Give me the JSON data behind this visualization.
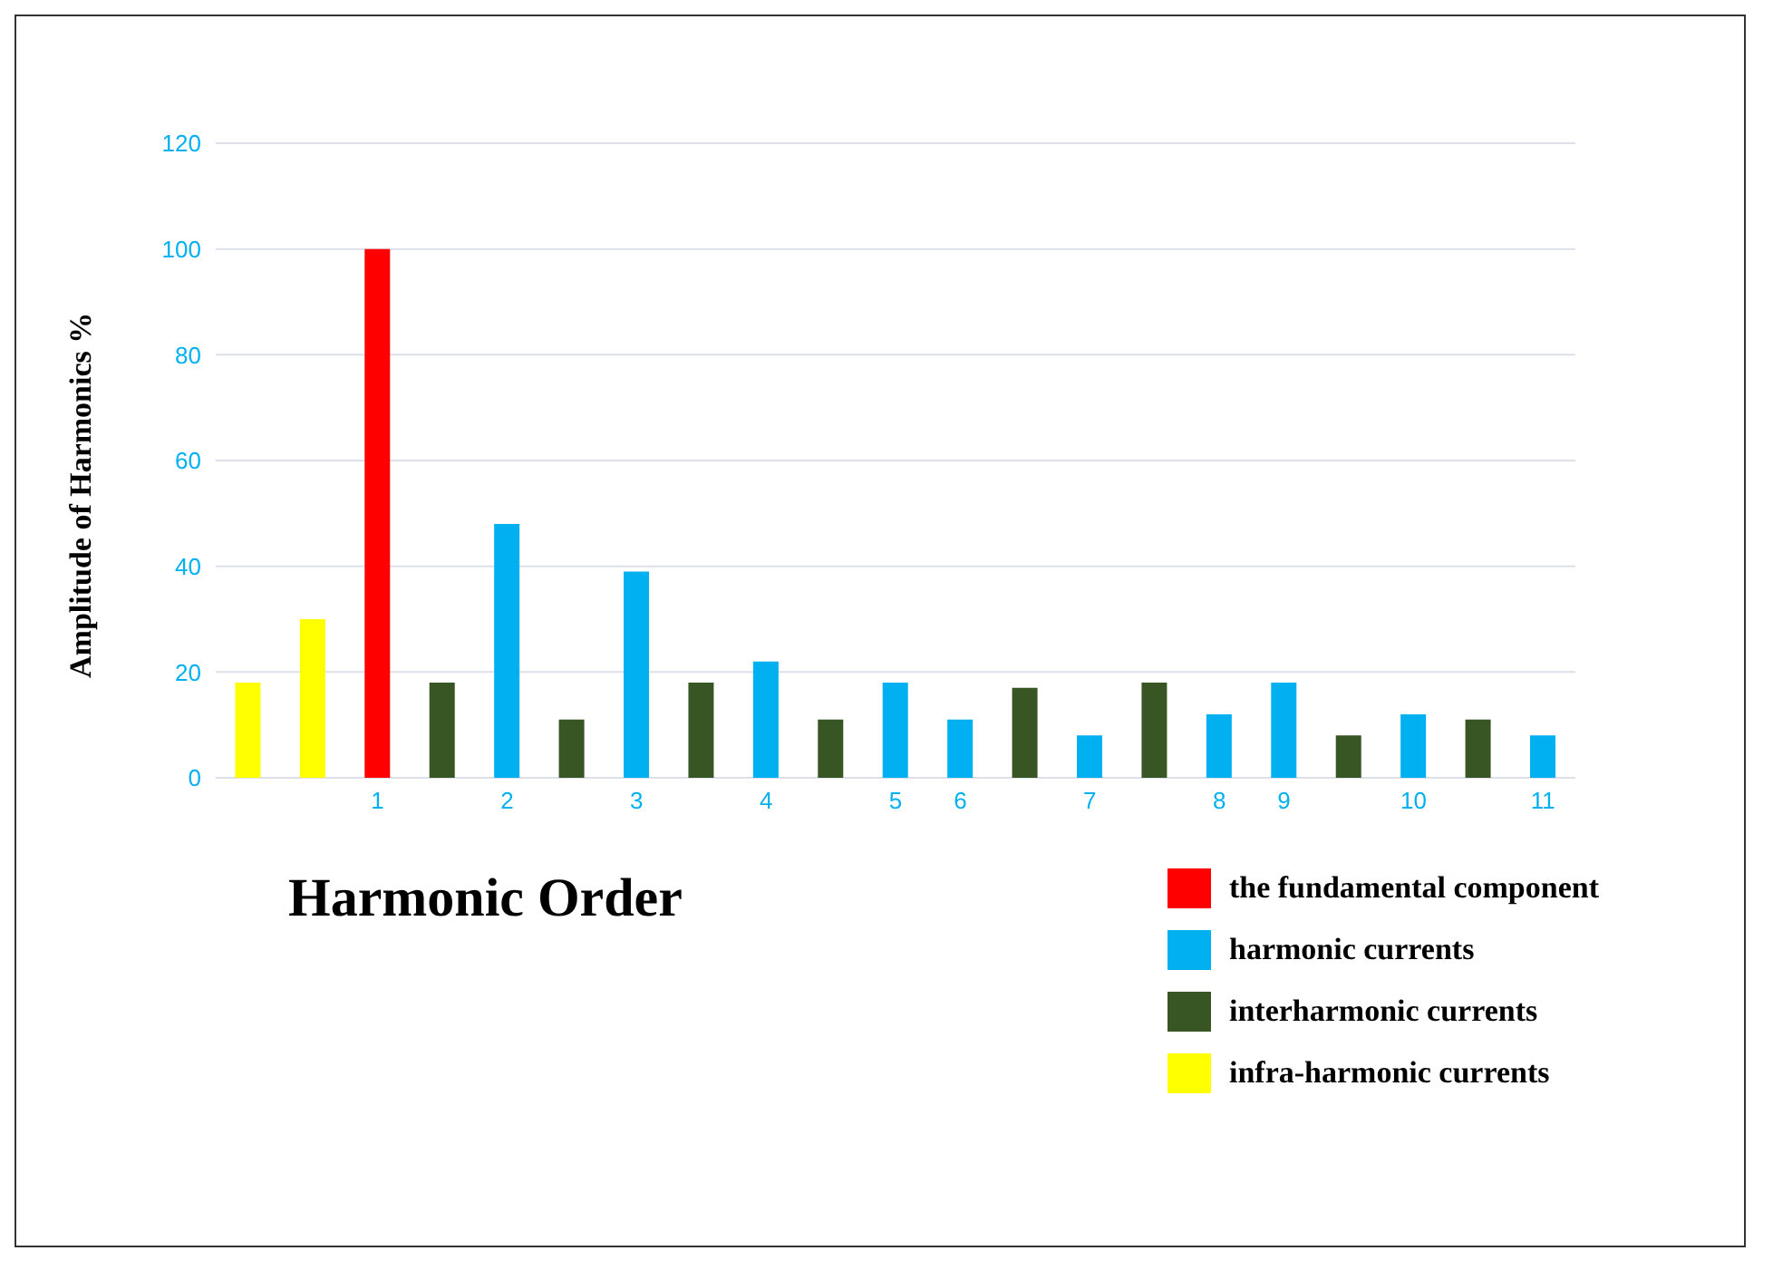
{
  "chart_data": {
    "type": "bar",
    "xlabel": "Harmonic Order",
    "ylabel": "Amplitude of Harmonics %",
    "categories": [
      null,
      null,
      "1",
      null,
      "2",
      null,
      "3",
      null,
      "4",
      null,
      "5",
      "6",
      null,
      "7",
      null,
      "8",
      "9",
      null,
      "10",
      null,
      "11"
    ],
    "stacked": true,
    "series": [
      {
        "name": "the fundamental component",
        "color": "#ff0000",
        "values": [
          null,
          null,
          100,
          null,
          null,
          null,
          null,
          null,
          null,
          null,
          null,
          null,
          null,
          null,
          null,
          null,
          null,
          null,
          null,
          null,
          null
        ]
      },
      {
        "name": "harmonic currents",
        "color": "#00b0f0",
        "values": [
          null,
          null,
          null,
          null,
          48,
          null,
          39,
          null,
          22,
          null,
          18,
          11,
          null,
          8,
          null,
          12,
          18,
          null,
          12,
          null,
          8
        ]
      },
      {
        "name": "interharmonic currents",
        "color": "#375623",
        "values": [
          null,
          null,
          null,
          18,
          null,
          11,
          null,
          18,
          null,
          11,
          null,
          null,
          17,
          null,
          18,
          null,
          null,
          8,
          null,
          11,
          null
        ]
      },
      {
        "name": "infra-harmonic currents",
        "color": "#ffff00",
        "values": [
          18,
          30,
          null,
          null,
          null,
          null,
          null,
          null,
          null,
          null,
          null,
          null,
          null,
          null,
          null,
          null,
          null,
          null,
          null,
          null,
          null
        ]
      }
    ],
    "ylim": [
      0,
      120
    ],
    "yticks": [
      0,
      20,
      40,
      60,
      80,
      100,
      120
    ],
    "grid": "y",
    "legend": "bottom right"
  }
}
